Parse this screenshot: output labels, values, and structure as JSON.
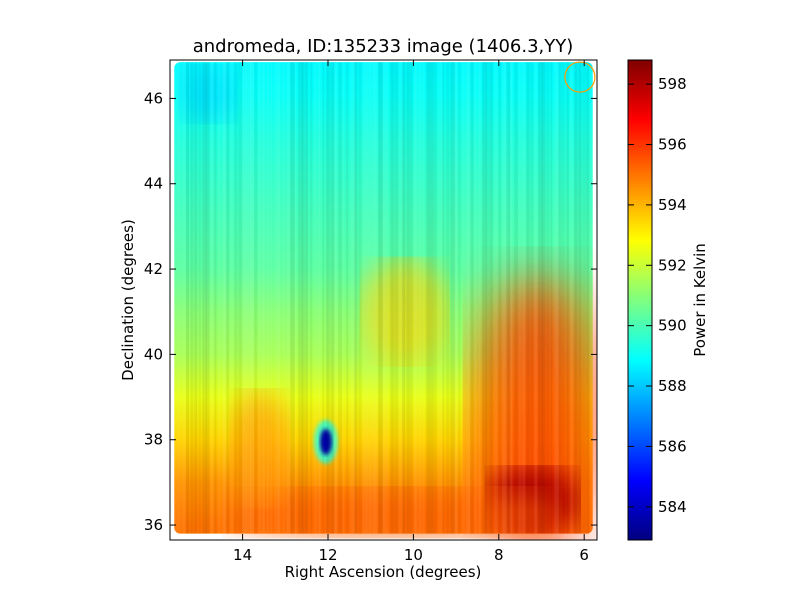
{
  "chart_data": {
    "type": "heatmap",
    "title": "andromeda, ID:135233 image (1406.3,YY)",
    "xlabel": "Right Ascension (degrees)",
    "ylabel": "Declination (degrees)",
    "xlim": [
      15.7,
      5.7
    ],
    "ylim": [
      35.65,
      46.9
    ],
    "x_ticks": [
      14,
      12,
      10,
      8,
      6
    ],
    "x_tick_labels": [
      "14",
      "12",
      "10",
      "8",
      "6"
    ],
    "y_ticks": [
      36,
      38,
      40,
      42,
      44,
      46
    ],
    "y_tick_labels": [
      "36",
      "38",
      "40",
      "42",
      "44",
      "46"
    ],
    "colorbar": {
      "label": "Power in Kelvin",
      "range": [
        582.9,
        598.8
      ],
      "ticks": [
        584,
        586,
        588,
        590,
        592,
        594,
        596,
        598
      ],
      "tick_labels": [
        "584",
        "586",
        "588",
        "590",
        "592",
        "594",
        "596",
        "598"
      ],
      "colormap": "jet"
    },
    "grid": false,
    "map_extent": {
      "x": [
        15.6,
        5.8
      ],
      "y": [
        35.8,
        46.85
      ]
    },
    "declination_profile": [
      {
        "dec": 36.0,
        "value": 595.0
      },
      {
        "dec": 37.0,
        "value": 594.5
      },
      {
        "dec": 38.0,
        "value": 593.5
      },
      {
        "dec": 39.0,
        "value": 592.5
      },
      {
        "dec": 40.0,
        "value": 591.5
      },
      {
        "dec": 41.0,
        "value": 591.0
      },
      {
        "dec": 42.0,
        "value": 590.3
      },
      {
        "dec": 43.0,
        "value": 590.0
      },
      {
        "dec": 44.0,
        "value": 589.7
      },
      {
        "dec": 45.0,
        "value": 589.4
      },
      {
        "dec": 46.0,
        "value": 589.0
      },
      {
        "dec": 46.85,
        "value": 588.8
      }
    ],
    "features": [
      {
        "name": "cold spot",
        "ra": 12.05,
        "dec": 37.95,
        "value": 583.5
      },
      {
        "name": "hot region",
        "ra": 7.2,
        "dec": 36.6,
        "value": 598.0
      },
      {
        "name": "warm region",
        "ra": 10.2,
        "dec": 41.0,
        "value": 593.5
      }
    ],
    "circle_marker": {
      "ra": 6.1,
      "dec": 46.5,
      "color": "#ff9900"
    }
  }
}
